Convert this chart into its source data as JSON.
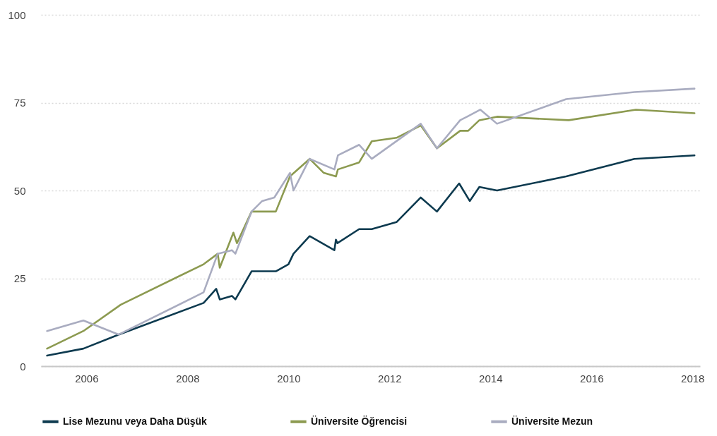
{
  "chart_data": {
    "type": "line",
    "xlim": [
      2005.1,
      2018.15
    ],
    "xticks": [
      2006,
      2008,
      2010,
      2012,
      2014,
      2016,
      2018
    ],
    "ylim": [
      0,
      100
    ],
    "yticks": [
      0,
      25,
      50,
      75,
      100
    ],
    "grid": "y",
    "legend": "bottom",
    "line_style": "solid",
    "series": [
      {
        "name": "Lise Mezunu veya Daha Düşük",
        "color": "#0d3a4f",
        "x": [
          2005.22,
          2005.94,
          2006.64,
          2008.32,
          2008.57,
          2008.64,
          2008.88,
          2008.95,
          2009.27,
          2009.75,
          2010.0,
          2010.1,
          2010.42,
          2010.91,
          2010.94,
          2010.97,
          2011.4,
          2011.65,
          2012.14,
          2012.62,
          2012.94,
          2013.38,
          2013.59,
          2013.78,
          2014.13,
          2015.5,
          2016.85,
          2018.04
        ],
        "values": [
          3,
          5,
          9,
          18,
          22,
          19,
          20,
          19,
          27,
          27,
          29,
          32,
          37,
          33,
          36,
          35,
          39,
          39,
          41,
          48,
          44,
          52,
          47,
          51,
          50,
          54,
          59,
          60
        ]
      },
      {
        "name": "Üniversite Öğrencisi",
        "color": "#8c9a50",
        "x": [
          2005.22,
          2005.94,
          2006.68,
          2008.32,
          2008.6,
          2008.64,
          2008.91,
          2008.98,
          2009.27,
          2009.75,
          2010.03,
          2010.42,
          2010.7,
          2010.94,
          2010.98,
          2011.4,
          2011.65,
          2012.14,
          2012.62,
          2012.94,
          2013.4,
          2013.56,
          2013.78,
          2014.13,
          2015.55,
          2016.88,
          2018.04
        ],
        "values": [
          5,
          10,
          17.5,
          29,
          32,
          28,
          38,
          35,
          44,
          44,
          54,
          59,
          55,
          54,
          56,
          58,
          64,
          65,
          68.5,
          62,
          67,
          67,
          70,
          71,
          70,
          73,
          72
        ]
      },
      {
        "name": "Üniversite Mezun",
        "color": "#a9acc0",
        "x": [
          2005.22,
          2005.94,
          2006.64,
          2008.32,
          2008.6,
          2008.88,
          2008.95,
          2009.27,
          2009.48,
          2009.72,
          2010.03,
          2010.1,
          2010.42,
          2010.91,
          2010.98,
          2011.4,
          2011.65,
          2012.62,
          2012.94,
          2013.4,
          2013.538,
          2013.8,
          2014.13,
          2015.5,
          2016.85,
          2018.04
        ],
        "values": [
          10,
          13,
          9,
          21,
          32,
          33,
          32,
          44,
          47,
          48,
          55,
          50,
          59,
          56,
          60,
          63,
          59,
          69,
          62,
          70,
          71,
          73,
          69,
          76,
          78,
          79
        ]
      }
    ]
  }
}
